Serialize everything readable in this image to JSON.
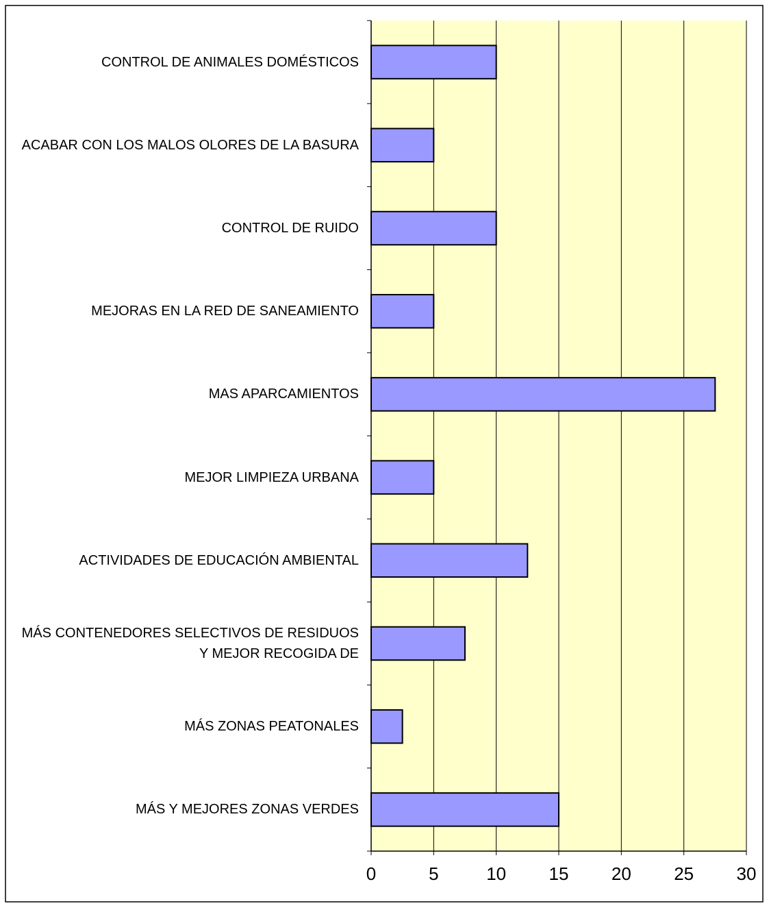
{
  "chart_data": {
    "type": "barh",
    "categories": [
      "CONTROL DE ANIMALES DOMÉSTICOS",
      "ACABAR CON LOS MALOS OLORES DE LA BASURA",
      "CONTROL DE RUIDO",
      "MEJORAS EN LA RED DE SANEAMIENTO",
      "MAS APARCAMIENTOS",
      "MEJOR LIMPIEZA URBANA",
      "ACTIVIDADES DE EDUCACIÓN AMBIENTAL",
      "MÁS CONTENEDORES SELECTIVOS DE RESIDUOS Y MEJOR RECOGIDA DE",
      "MÁS ZONAS PEATONALES",
      "MÁS Y MEJORES ZONAS VERDES"
    ],
    "values": [
      10,
      5,
      10,
      5,
      27.5,
      5,
      12.5,
      7.5,
      2.5,
      15
    ],
    "color": "#9999ff",
    "plot_background": "#ffffcc",
    "xlim": [
      0,
      30
    ],
    "xticks": [
      0,
      5,
      10,
      15,
      20,
      25,
      30
    ],
    "grid": true
  }
}
